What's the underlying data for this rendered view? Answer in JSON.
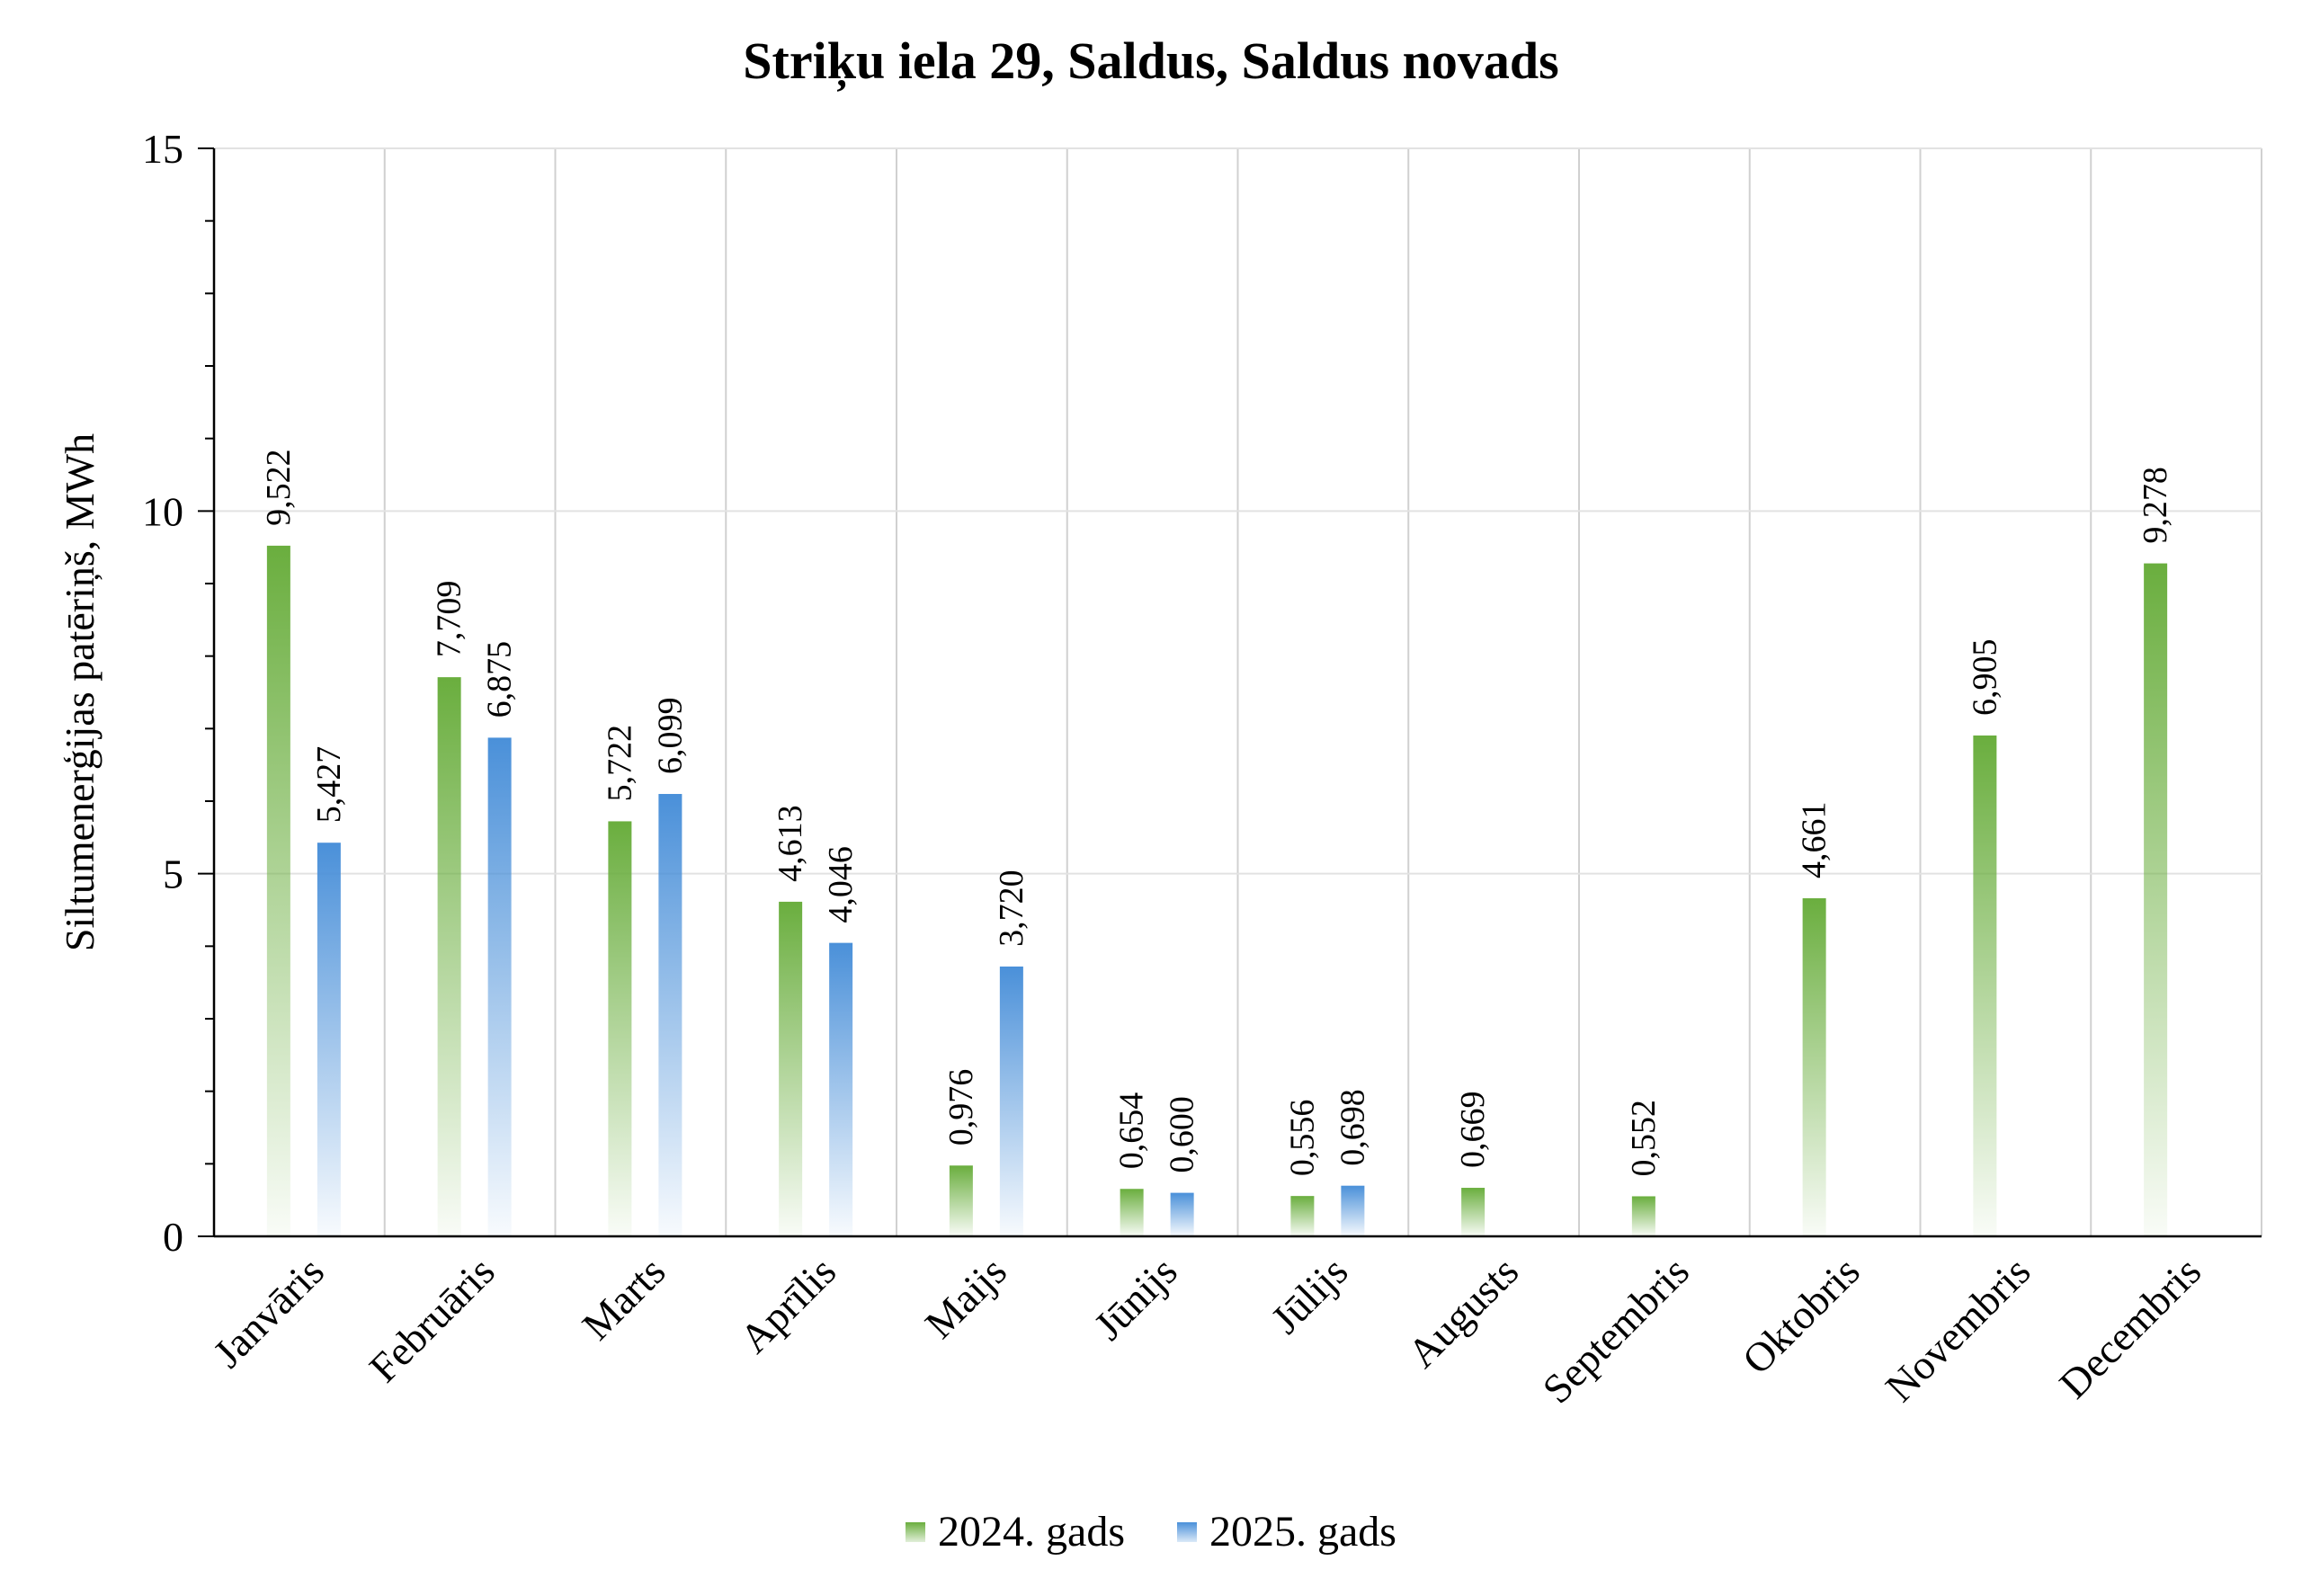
{
  "chart_data": {
    "type": "bar",
    "title": "Striķu iela 29, Saldus, Saldus novads",
    "xlabel": "",
    "ylabel": "Siltumenerģijas patēriņš, MWh",
    "ylim": [
      0,
      15
    ],
    "yticks": [
      "0",
      "5",
      "10",
      "15"
    ],
    "grid": true,
    "legend_position": "bottom",
    "categories": [
      "Janvāris",
      "Februāris",
      "Marts",
      "Aprīlis",
      "Maijs",
      "Jūnijs",
      "Jūlijs",
      "Augusts",
      "Septembris",
      "Oktobris",
      "Novembris",
      "Decembris"
    ],
    "series": [
      {
        "name": "2024. gads",
        "color": "#6aae3e",
        "values": [
          9.522,
          7.709,
          5.722,
          4.613,
          0.976,
          0.654,
          0.556,
          0.669,
          0.552,
          4.661,
          6.905,
          9.278
        ],
        "labels": [
          "9,522",
          "7,709",
          "5,722",
          "4,613",
          "0,976",
          "0,654",
          "0,556",
          "0,669",
          "0,552",
          "4,661",
          "6,905",
          "9,278"
        ]
      },
      {
        "name": "2025. gads",
        "color": "#4a90d9",
        "values": [
          5.427,
          6.875,
          6.099,
          4.046,
          3.72,
          0.6,
          0.698,
          null,
          null,
          null,
          null,
          null
        ],
        "labels": [
          "5,427",
          "6,875",
          "6,099",
          "4,046",
          "3,720",
          "0,600",
          "0,698",
          null,
          null,
          null,
          null,
          null
        ]
      }
    ]
  }
}
